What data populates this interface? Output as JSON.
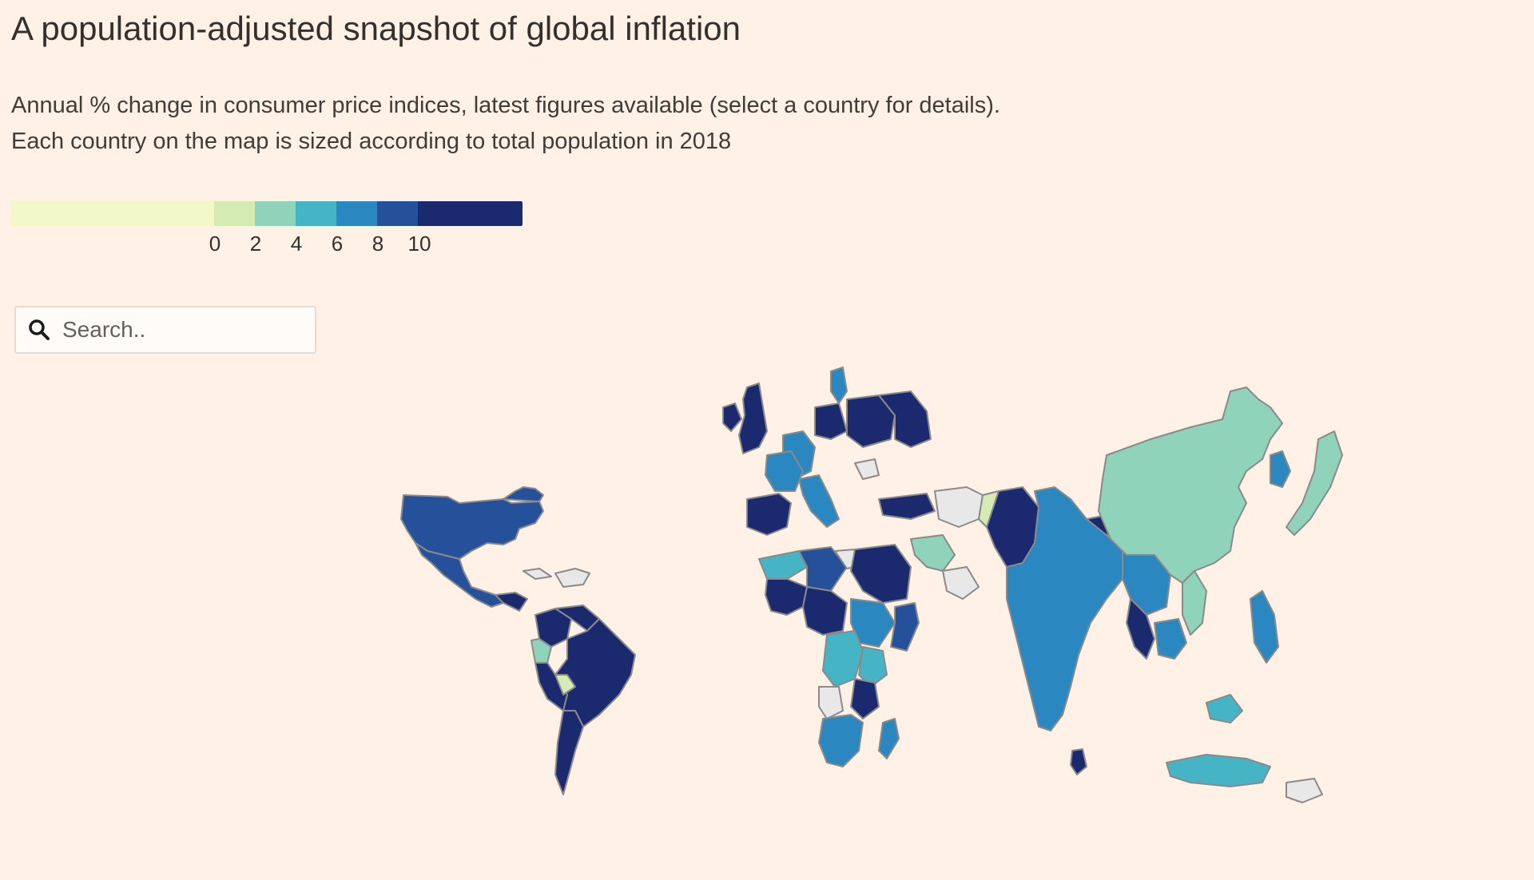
{
  "header": {
    "title": "A population-adjusted snapshot of global inflation",
    "subtitle_line1": "Annual % change in consumer price indices, latest figures available (select a country for details).",
    "subtitle_line2": "Each country on the map is sized according to total population in 2018"
  },
  "legend": {
    "ticks": [
      "0",
      "2",
      "4",
      "6",
      "8",
      "10"
    ],
    "colors": {
      "below_0": "#f2f8c8",
      "0_2": "#d4ebb4",
      "2_4": "#8fd3bb",
      "4_6": "#45b5c6",
      "6_8": "#2b87bf",
      "8_10": "#25519b",
      "above_10": "#1b2a6e",
      "no_data": "#e8e8e8"
    }
  },
  "search": {
    "placeholder": "Search.."
  },
  "map": {
    "icons": [
      "search-icon"
    ]
  }
}
